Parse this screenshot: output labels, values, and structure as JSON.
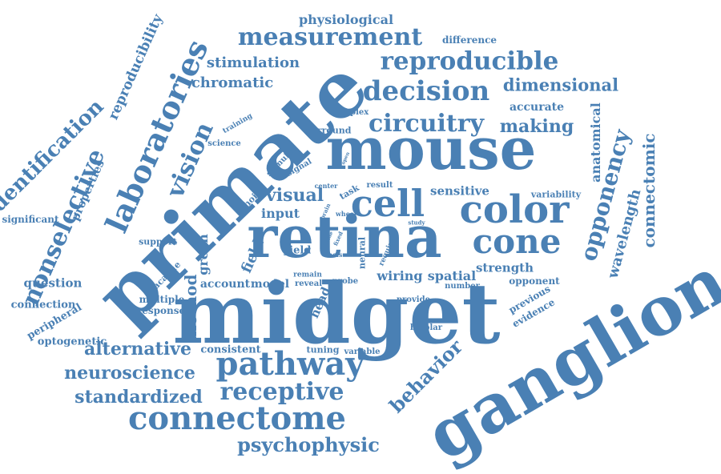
{
  "colors": {
    "word": "#4a80b4",
    "background": "#ffffff"
  },
  "words": {
    "midget": "midget",
    "ganglion": "ganglion",
    "primate": "primate",
    "retina": "retina",
    "mouse": "mouse",
    "color": "color",
    "cone": "cone",
    "cell": "cell",
    "pathway": "pathway",
    "connectome": "connectome",
    "laboratories": "laboratories",
    "decision": "decision",
    "reproducible": "reproducible",
    "measurement": "measurement",
    "circuitry": "circuitry",
    "vision": "vision",
    "receptive": "receptive",
    "nonselective": "nonselective",
    "opponency": "opponency",
    "behavior": "behavior",
    "identification": "identification",
    "psychophysic": "psychophysic",
    "standardized": "standardized",
    "neuroscience": "neuroscience",
    "alternative": "alternative",
    "making": "making",
    "dimensional": "dimensional",
    "stimulation": "stimulation",
    "chromatic": "chromatic",
    "reproducibility": "reproducibility",
    "physiological": "physiological",
    "difference": "difference",
    "accurate": "accurate",
    "anatomical": "anatomical",
    "connectomic": "connectomic",
    "wavelength": "wavelength",
    "visual": "visual",
    "input": "input",
    "sensitive": "sensitive",
    "variability": "variability",
    "properties": "properties",
    "significant": "significant",
    "question": "question",
    "connection": "connection",
    "peripheral": "peripheral",
    "optogenetic": "optogenetic",
    "method": "method",
    "green": "green",
    "field": "field",
    "head": "head",
    "support": "support",
    "macaque": "macaque",
    "multiple": "multiple",
    "response": "response",
    "account": "account",
    "model": "model",
    "reveal": "reveal",
    "probe": "probe",
    "yield": "yield",
    "wiring": "wiring",
    "spatial": "spatial",
    "strength": "strength",
    "opponent": "opponent",
    "number": "number",
    "provide": "provide",
    "previous": "previous",
    "evidence": "evidence",
    "consistent": "consistent",
    "tuning": "tuning",
    "variable": "variable",
    "bipolar": "bipolar",
    "training": "training",
    "science": "science",
    "stimulus": "stimulus",
    "signal": "signal",
    "choice": "choice",
    "complex": "complex",
    "surround": "surround",
    "center": "center",
    "task": "task",
    "result": "result",
    "brain": "brain",
    "wheel": "wheel",
    "study": "study",
    "require": "require",
    "neural": "neural",
    "basis": "basis",
    "remain": "remain",
    "open": "open",
    "fixed": "fixed",
    "side": "side"
  }
}
